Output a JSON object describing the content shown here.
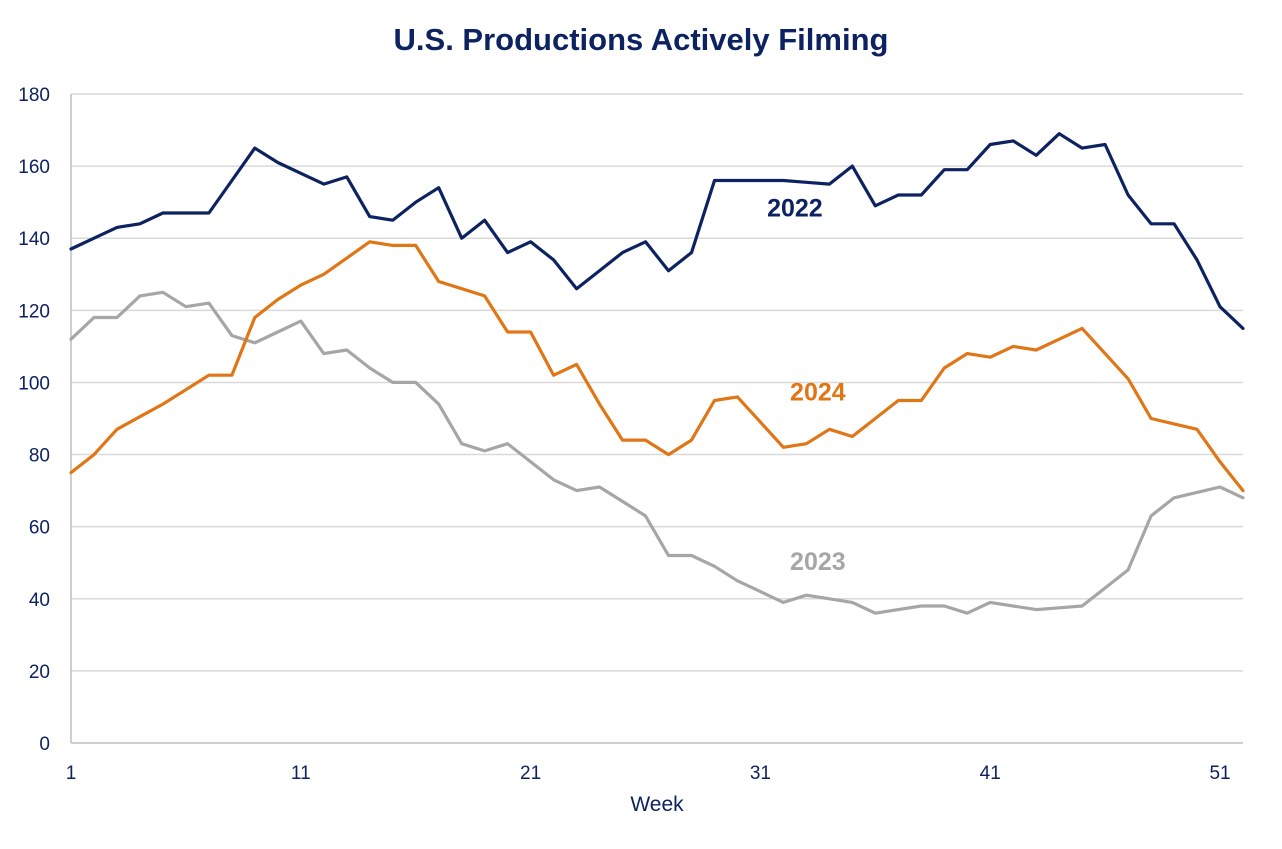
{
  "chart_data": {
    "type": "line",
    "title": "U.S. Productions Actively Filming",
    "xlabel": "Week",
    "ylabel": "",
    "xlim": [
      1,
      52
    ],
    "ylim": [
      0,
      180
    ],
    "x_ticks": [
      1,
      11,
      21,
      31,
      41,
      51
    ],
    "y_ticks": [
      0,
      20,
      40,
      60,
      80,
      100,
      120,
      140,
      160,
      180
    ],
    "grid": "horizontal",
    "legend": "inline labels",
    "series": [
      {
        "name": "2022",
        "color": "#0d2260",
        "x": [
          1,
          2,
          3,
          4,
          5,
          6,
          7,
          8,
          9,
          10,
          11,
          12,
          13,
          14,
          15,
          16,
          17,
          18,
          19,
          20,
          21,
          22,
          23,
          24,
          25,
          26,
          27,
          28,
          29,
          30,
          31,
          32,
          33,
          34,
          35,
          36,
          37,
          38,
          39,
          40,
          41,
          42,
          43,
          44,
          45,
          46,
          47,
          48,
          49,
          50,
          51,
          52
        ],
        "values": [
          137,
          140,
          143,
          144,
          147,
          147,
          147,
          156,
          165,
          161,
          158,
          155,
          157,
          146,
          145,
          150,
          154,
          140,
          145,
          136,
          139,
          134,
          126,
          131,
          136,
          139,
          131,
          136,
          156,
          156,
          156,
          156,
          155.5,
          155,
          160,
          149,
          152,
          152,
          159,
          159,
          166,
          167,
          163,
          169,
          165,
          166,
          152,
          144,
          144,
          134,
          121,
          115
        ]
      },
      {
        "name": "2023",
        "color": "#a6a6a6",
        "x": [
          1,
          2,
          3,
          4,
          5,
          6,
          7,
          8,
          9,
          10,
          11,
          12,
          13,
          14,
          15,
          16,
          17,
          18,
          19,
          20,
          21,
          22,
          23,
          24,
          25,
          26,
          27,
          28,
          29,
          30,
          31,
          32,
          33,
          34,
          35,
          36,
          37,
          38,
          39,
          40,
          41,
          42,
          43,
          44,
          45,
          46,
          47,
          48,
          49,
          50,
          51,
          52
        ],
        "values": [
          112,
          118,
          118,
          124,
          125,
          121,
          122,
          113,
          111,
          114,
          117,
          108,
          109,
          104,
          100,
          100,
          94,
          83,
          81,
          83,
          78,
          73,
          70,
          71,
          67,
          63,
          52,
          52,
          49,
          45,
          42,
          39,
          41,
          40,
          39,
          36,
          37,
          38,
          38,
          36,
          39,
          38,
          37,
          37.5,
          38,
          43,
          48,
          63,
          68,
          69.5,
          71,
          68
        ]
      },
      {
        "name": "2024",
        "color": "#e07616",
        "x": [
          1,
          2,
          3,
          4,
          5,
          6,
          7,
          8,
          9,
          10,
          11,
          12,
          13,
          14,
          15,
          16,
          17,
          18,
          19,
          20,
          21,
          22,
          23,
          24,
          25,
          26,
          27,
          28,
          29,
          30,
          31,
          32,
          33,
          34,
          35,
          36,
          37,
          38,
          39,
          40,
          41,
          42,
          43,
          44,
          45,
          46,
          47,
          48,
          49,
          50,
          51,
          52
        ],
        "values": [
          75,
          80,
          87,
          90.5,
          94,
          98,
          102,
          102,
          118,
          123,
          127,
          130,
          134.5,
          139,
          138,
          138,
          128,
          126,
          124,
          114,
          114,
          102,
          105,
          94,
          84,
          84,
          80,
          84,
          95,
          96,
          89,
          82,
          83,
          87,
          85,
          90,
          95,
          95,
          104,
          108,
          107,
          110,
          109,
          112,
          115,
          108,
          101,
          90,
          88.5,
          87,
          78,
          70
        ]
      }
    ],
    "annotations": [
      {
        "text": "2022",
        "series": "2022",
        "x": 32.5,
        "y": 146
      },
      {
        "text": "2024",
        "series": "2024",
        "x": 33.5,
        "y": 95
      },
      {
        "text": "2023",
        "series": "2023",
        "x": 33.5,
        "y": 48
      }
    ]
  }
}
